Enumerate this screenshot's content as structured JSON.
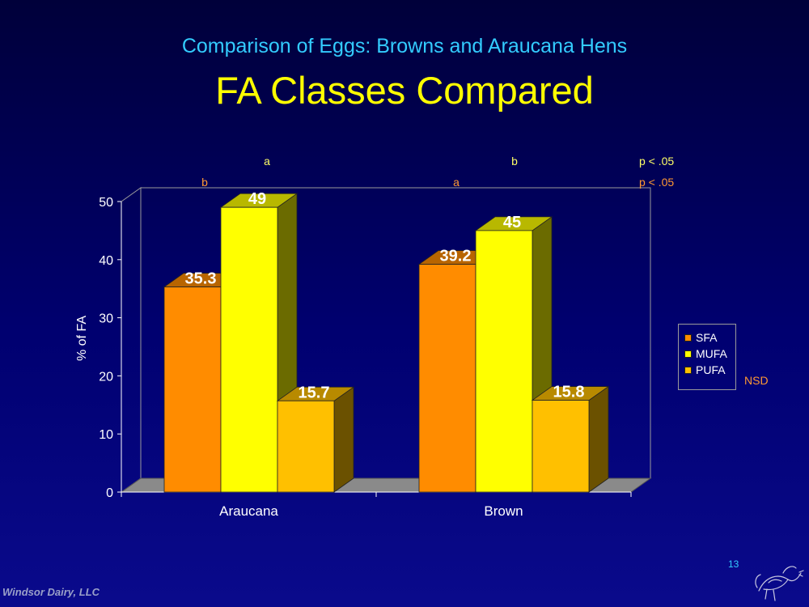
{
  "header": {
    "subtitle": "Comparison of Eggs: Browns and Araucana Hens",
    "title": "FA Classes Compared"
  },
  "chart_data": {
    "type": "bar",
    "style": "3d-clustered",
    "categories": [
      "Araucana",
      "Brown"
    ],
    "series": [
      {
        "name": "SFA",
        "values": [
          35.3,
          39.2
        ],
        "color": "#ff8c00"
      },
      {
        "name": "MUFA",
        "values": [
          49,
          45
        ],
        "color": "#ffff00"
      },
      {
        "name": "PUFA",
        "values": [
          15.7,
          15.8
        ],
        "color": "#ffc000"
      }
    ],
    "data_labels": {
      "SFA": [
        "35.3",
        "39.2"
      ],
      "MUFA": [
        "49",
        "45"
      ],
      "PUFA": [
        "15.7",
        "15.8"
      ]
    },
    "ylabel": "% of FA",
    "ylim": [
      0,
      50
    ],
    "yticks": [
      "0",
      "10",
      "20",
      "30",
      "40",
      "50"
    ],
    "grid": false,
    "legend_position": "right",
    "annotations": {
      "mufa_significance": {
        "araucana": "a",
        "brown": "b",
        "p": "p < .05",
        "color": "#ffff66"
      },
      "sfa_significance": {
        "araucana": "b",
        "brown": "a",
        "p": "p < .05",
        "color": "#ff9933"
      },
      "pufa_note": "NSD"
    }
  },
  "footer": {
    "company": "Windsor Dairy, LLC",
    "slide_number": "13"
  },
  "logo_icon": "hen-sketch-logo"
}
